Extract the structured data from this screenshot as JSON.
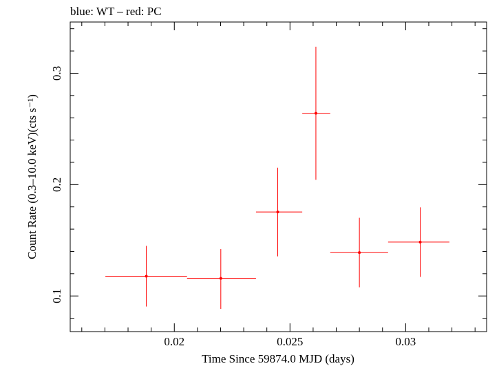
{
  "chart_data": {
    "type": "scatter",
    "title": "blue: WT – red: PC",
    "xlabel": "Time Since 59874.0 MJD (days)",
    "ylabel": "Count Rate (0.3–10.0 keV)(cts s⁻¹)",
    "xlim": [
      0.0155,
      0.0335
    ],
    "ylim": [
      0.068,
      0.346
    ],
    "x_ticks": [
      {
        "value": 0.02,
        "label": "0.02"
      },
      {
        "value": 0.025,
        "label": "0.025"
      },
      {
        "value": 0.03,
        "label": "0.03"
      }
    ],
    "y_ticks": [
      {
        "value": 0.1,
        "label": "0.1"
      },
      {
        "value": 0.2,
        "label": "0.2"
      },
      {
        "value": 0.3,
        "label": "0.3"
      }
    ],
    "grid": false,
    "series": [
      {
        "color": "#ff0000",
        "points": [
          {
            "x": 0.01879,
            "y": 0.1177,
            "xerr": [
              0.01702,
              0.02055
            ],
            "yerr": [
              0.0905,
              0.145
            ]
          },
          {
            "x": 0.02201,
            "y": 0.1158,
            "xerr": [
              0.02055,
              0.02353
            ],
            "yerr": [
              0.0884,
              0.1421
            ]
          },
          {
            "x": 0.02447,
            "y": 0.1754,
            "xerr": [
              0.02353,
              0.02553
            ],
            "yerr": [
              0.1356,
              0.2152
            ]
          },
          {
            "x": 0.02612,
            "y": 0.2641,
            "xerr": [
              0.02553,
              0.02674
            ],
            "yerr": [
              0.2043,
              0.3238
            ]
          },
          {
            "x": 0.028,
            "y": 0.139,
            "xerr": [
              0.02674,
              0.02924
            ],
            "yerr": [
              0.1078,
              0.1702
            ]
          },
          {
            "x": 0.03063,
            "y": 0.1484,
            "xerr": [
              0.02924,
              0.03189
            ],
            "yerr": [
              0.1171,
              0.1796
            ]
          }
        ]
      }
    ]
  }
}
